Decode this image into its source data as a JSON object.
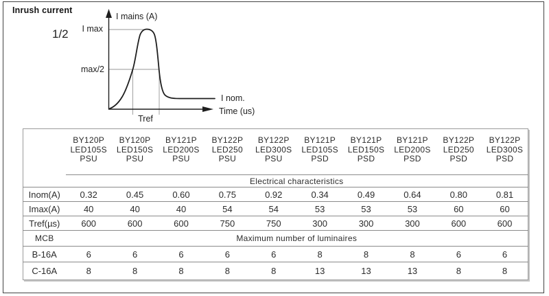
{
  "page": {
    "title": "Inrush current",
    "fraction_label": "1/2"
  },
  "graph": {
    "y_axis_label": "I mains (A)",
    "imax_label": "I max",
    "half_label": "max/2",
    "inom_label": "I nom.",
    "x_axis_label": "Time (us)",
    "tref_label": "Tref"
  },
  "table": {
    "columns": [
      {
        "model": "BY120P",
        "variant": "LED105S",
        "driver": "PSU"
      },
      {
        "model": "BY120P",
        "variant": "LED150S",
        "driver": "PSU"
      },
      {
        "model": "BY121P",
        "variant": "LED200S",
        "driver": "PSU"
      },
      {
        "model": "BY122P",
        "variant": "LED250",
        "driver": "PSU"
      },
      {
        "model": "BY122P",
        "variant": "LED300S",
        "driver": "PSU"
      },
      {
        "model": "BY121P",
        "variant": "LED105S",
        "driver": "PSD"
      },
      {
        "model": "BY121P",
        "variant": "LED150S",
        "driver": "PSD"
      },
      {
        "model": "BY121P",
        "variant": "LED200S",
        "driver": "PSD"
      },
      {
        "model": "BY122P",
        "variant": "LED250",
        "driver": "PSD"
      },
      {
        "model": "BY122P",
        "variant": "LED300S",
        "driver": "PSD"
      }
    ],
    "section_electrical": "Electrical characteristics",
    "section_luminaires": "Maximum number of luminaires",
    "mcb_label": "MCB",
    "rows": [
      {
        "label": "Inom(A)",
        "values": [
          "0.32",
          "0.45",
          "0.60",
          "0.75",
          "0.92",
          "0.34",
          "0.49",
          "0.64",
          "0.80",
          "0.81"
        ]
      },
      {
        "label": "Imax(A)",
        "values": [
          "40",
          "40",
          "40",
          "54",
          "54",
          "53",
          "53",
          "53",
          "60",
          "60"
        ]
      },
      {
        "label": "Tref(µs)",
        "values": [
          "600",
          "600",
          "600",
          "750",
          "750",
          "300",
          "300",
          "300",
          "600",
          "600"
        ]
      }
    ],
    "mcb_rows": [
      {
        "label": "B-16A",
        "values": [
          "6",
          "6",
          "6",
          "6",
          "6",
          "8",
          "8",
          "8",
          "6",
          "6"
        ]
      },
      {
        "label": "C-16A",
        "values": [
          "8",
          "8",
          "8",
          "8",
          "8",
          "13",
          "13",
          "13",
          "8",
          "8"
        ]
      }
    ]
  },
  "colors": {
    "text": "#2b2b2b",
    "table_line": "#8a8a8a",
    "page_border": "#424242",
    "curve": "#1e1e1e"
  }
}
